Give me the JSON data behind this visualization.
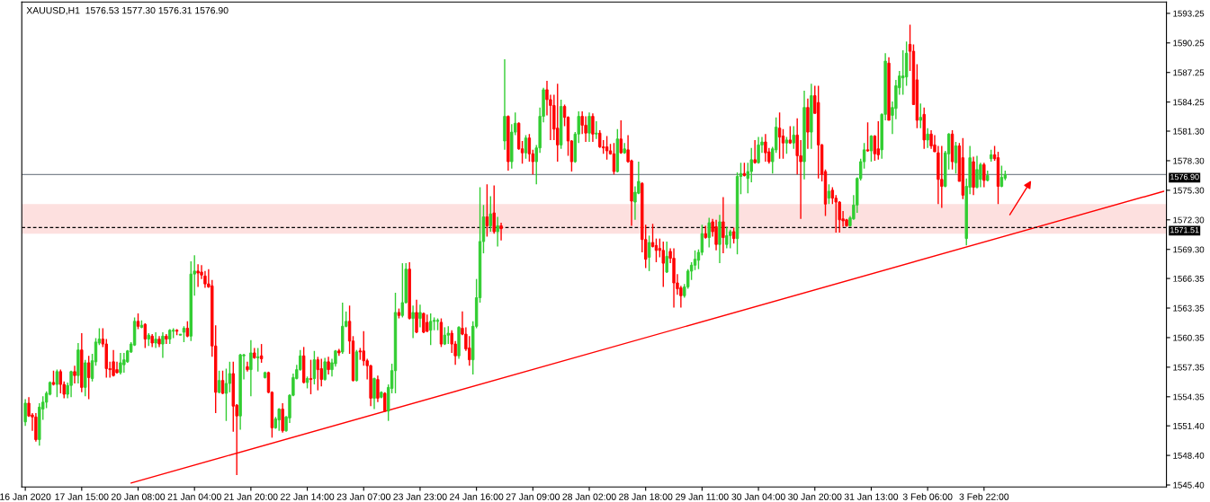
{
  "chart_data": {
    "type": "candlestick",
    "title": "XAUUSD,H1  1576.53 1577.30 1576.31 1576.90",
    "categories": [
      "16 Jan 2020",
      null,
      null,
      null,
      null,
      null,
      null,
      null,
      null,
      null,
      null,
      null,
      null,
      null,
      null,
      null,
      "17 Jan 15:00",
      null,
      null,
      null,
      null,
      null,
      null,
      null,
      null,
      null,
      null,
      null,
      null,
      null,
      null,
      null,
      "20 Jan 08:00",
      null,
      null,
      null,
      null,
      null,
      null,
      null,
      null,
      null,
      null,
      null,
      null,
      null,
      null,
      null,
      "21 Jan 04:00",
      null,
      null,
      null,
      null,
      null,
      null,
      null,
      null,
      null,
      null,
      null,
      null,
      null,
      null,
      null,
      "21 Jan 20:00",
      null,
      null,
      null,
      null,
      null,
      null,
      null,
      null,
      null,
      null,
      null,
      null,
      null,
      null,
      null,
      "22 Jan 14:00",
      null,
      null,
      null,
      null,
      null,
      null,
      null,
      null,
      null,
      null,
      null,
      null,
      null,
      null,
      null,
      "23 Jan 07:00",
      null,
      null,
      null,
      null,
      null,
      null,
      null,
      null,
      null,
      null,
      null,
      null,
      null,
      null,
      null,
      "23 Jan 23:00",
      null,
      null,
      null,
      null,
      null,
      null,
      null,
      null,
      null,
      null,
      null,
      null,
      null,
      null,
      null,
      "24 Jan 16:00",
      null,
      null,
      null,
      null,
      null,
      null,
      null,
      null,
      null,
      null,
      null,
      null,
      null,
      null,
      null,
      "27 Jan 09:00",
      null,
      null,
      null,
      null,
      null,
      null,
      null,
      null,
      null,
      null,
      null,
      null,
      null,
      null,
      null,
      "28 Jan 02:00",
      null,
      null,
      null,
      null,
      null,
      null,
      null,
      null,
      null,
      null,
      null,
      null,
      null,
      null,
      null,
      "28 Jan 18:00",
      null,
      null,
      null,
      null,
      null,
      null,
      null,
      null,
      null,
      null,
      null,
      null,
      null,
      null,
      null,
      "29 Jan 11:00",
      null,
      null,
      null,
      null,
      null,
      null,
      null,
      null,
      null,
      null,
      null,
      null,
      null,
      null,
      null,
      "30 Jan 04:00",
      null,
      null,
      null,
      null,
      null,
      null,
      null,
      null,
      null,
      null,
      null,
      null,
      null,
      null,
      null,
      "30 Jan 20:00",
      null,
      null,
      null,
      null,
      null,
      null,
      null,
      null,
      null,
      null,
      null,
      null,
      null,
      null,
      null,
      "31 Jan 13:00",
      null,
      null,
      null,
      null,
      null,
      null,
      null,
      null,
      null,
      null,
      null,
      null,
      null,
      null,
      null,
      "3 Feb 06:00",
      null,
      null,
      null,
      null,
      null,
      null,
      null,
      null,
      null,
      null,
      null,
      null,
      null,
      null,
      null,
      "3 Feb 22:00",
      null,
      null,
      null,
      null,
      null,
      null,
      null,
      null,
      null,
      null,
      null,
      null,
      null,
      null,
      null,
      null,
      null,
      null,
      null,
      null,
      null,
      null,
      null,
      null,
      null,
      null,
      null,
      null,
      null,
      null,
      null,
      null,
      null,
      null,
      null,
      null,
      null,
      null,
      null,
      null,
      null,
      null,
      null,
      null,
      null,
      null,
      null,
      null,
      null,
      null,
      null
    ],
    "ohlc": [
      [
        1551.8,
        1554.1,
        1551.4,
        1553.7
      ],
      [
        1553.7,
        1554.3,
        1552.3,
        1552.4
      ],
      [
        1552.5,
        1552.7,
        1550.9,
        1552.3
      ],
      [
        1552.3,
        1552.7,
        1549.8,
        1550.0
      ],
      [
        1550.0,
        1553.7,
        1549.4,
        1553.3
      ],
      [
        1553.1,
        1554.4,
        1552.0,
        1553.8
      ],
      [
        1553.8,
        1554.9,
        1553.2,
        1554.7
      ],
      [
        1554.6,
        1555.9,
        1554.5,
        1555.8
      ],
      [
        1555.8,
        1557.0,
        1555.5,
        1555.6
      ],
      [
        1555.6,
        1557.1,
        1554.3,
        1556.9
      ],
      [
        1556.9,
        1557.1,
        1554.7,
        1555.6
      ],
      [
        1555.6,
        1555.9,
        1554.2,
        1554.6
      ],
      [
        1554.6,
        1555.8,
        1554.2,
        1555.5
      ],
      [
        1555.5,
        1557.0,
        1554.3,
        1556.9
      ],
      [
        1556.9,
        1557.5,
        1555.7,
        1556.5
      ],
      [
        1556.5,
        1559.8,
        1555.7,
        1559.1
      ],
      [
        1559.1,
        1560.8,
        1554.8,
        1555.3
      ],
      [
        1555.3,
        1558.1,
        1554.4,
        1557.8
      ],
      [
        1557.8,
        1558.5,
        1554.1,
        1556.3
      ],
      [
        1556.2,
        1558.7,
        1555.9,
        1558.0
      ],
      [
        1557.9,
        1560.3,
        1557.5,
        1559.9
      ],
      [
        1559.8,
        1561.3,
        1559.6,
        1560.2
      ],
      [
        1560.2,
        1561.3,
        1559.4,
        1559.7
      ],
      [
        1559.7,
        1560.2,
        1556.3,
        1557.2
      ],
      [
        1557.2,
        1557.9,
        1556.3,
        1557.1
      ],
      [
        1557.9,
        1559.1,
        1556.4,
        1556.5
      ],
      [
        1557.1,
        1557.9,
        1556.7,
        1556.8
      ],
      [
        1556.8,
        1558.8,
        1556.6,
        1557.8
      ],
      [
        1557.6,
        1558.8,
        1556.8,
        1558.1
      ],
      [
        1557.9,
        1559.1,
        1557.8,
        1559.0
      ],
      [
        1558.9,
        1559.9,
        1558.8,
        1559.7
      ],
      [
        1559.6,
        1562.4,
        1559.5,
        1562.0
      ],
      [
        1562.0,
        1562.8,
        1561.2,
        1561.5
      ],
      [
        1561.4,
        1562.1,
        1561.3,
        1561.6
      ],
      [
        1561.7,
        1561.8,
        1559.3,
        1560.2
      ],
      [
        1560.2,
        1560.8,
        1559.5,
        1560.6
      ],
      [
        1560.5,
        1560.7,
        1559.4,
        1559.8
      ],
      [
        1559.8,
        1560.9,
        1559.3,
        1560.2
      ],
      [
        1560.2,
        1560.5,
        1559.4,
        1559.7
      ],
      [
        1559.7,
        1560.9,
        1558.3,
        1560.5
      ],
      [
        1560.5,
        1560.7,
        1559.7,
        1560.2
      ],
      [
        1560.2,
        1561.2,
        1559.7,
        1561.1
      ],
      [
        1561.0,
        1561.3,
        1560.3,
        1561.1
      ],
      [
        1561.1,
        1561.2,
        1560.6,
        1561.0
      ],
      [
        1560.6,
        1560.7,
        1560.6,
        1560.7
      ],
      [
        1560.9,
        1561.5,
        1559.9,
        1561.3
      ],
      [
        1561.3,
        1562.0,
        1560.4,
        1560.5
      ],
      [
        1560.5,
        1568.1,
        1560.0,
        1566.8
      ],
      [
        1566.8,
        1568.7,
        1564.6,
        1567.1
      ],
      [
        1567.1,
        1567.8,
        1565.5,
        1566.9
      ],
      [
        1567.0,
        1567.7,
        1566.3,
        1566.7
      ],
      [
        1566.6,
        1567.1,
        1565.4,
        1565.8
      ],
      [
        1565.8,
        1567.3,
        1565.4,
        1565.5
      ],
      [
        1565.6,
        1566.2,
        1558.4,
        1559.5
      ],
      [
        1559.5,
        1561.6,
        1552.7,
        1554.8
      ],
      [
        1554.8,
        1557.0,
        1554.7,
        1556.0
      ],
      [
        1556.0,
        1557.0,
        1554.6,
        1554.7
      ],
      [
        1554.7,
        1557.2,
        1551.9,
        1555.7
      ],
      [
        1555.7,
        1557.9,
        1554.8,
        1556.7
      ],
      [
        1556.7,
        1557.9,
        1550.8,
        1553.4
      ],
      [
        1553.5,
        1553.6,
        1546.4,
        1552.4
      ],
      [
        1552.4,
        1558.7,
        1551.0,
        1558.6
      ],
      [
        1558.5,
        1558.7,
        1556.1,
        1558.6
      ],
      [
        1557.4,
        1557.9,
        1556.9,
        1557.1
      ],
      [
        1557.1,
        1560.1,
        1554.4,
        1558.8
      ],
      [
        1558.8,
        1559.3,
        1558.2,
        1558.3
      ],
      [
        1558.3,
        1559.3,
        1556.9,
        1558.4
      ],
      [
        1558.5,
        1559.7,
        1557.8,
        1558.2
      ],
      [
        1556.3,
        1556.9,
        1556.2,
        1556.8
      ],
      [
        1556.8,
        1556.9,
        1554.7,
        1554.8
      ],
      [
        1554.8,
        1554.9,
        1550.2,
        1551.2
      ],
      [
        1551.2,
        1552.3,
        1551.1,
        1552.1
      ],
      [
        1552.0,
        1553.2,
        1550.9,
        1553.1
      ],
      [
        1553.1,
        1553.7,
        1550.7,
        1550.9
      ],
      [
        1550.9,
        1552.4,
        1550.8,
        1552.3
      ],
      [
        1552.2,
        1554.6,
        1551.7,
        1554.5
      ],
      [
        1554.5,
        1556.7,
        1554.4,
        1556.3
      ],
      [
        1556.2,
        1557.6,
        1556.1,
        1557.1
      ],
      [
        1557.1,
        1559.1,
        1557.0,
        1558.5
      ],
      [
        1558.5,
        1559.4,
        1555.7,
        1555.8
      ],
      [
        1555.8,
        1556.4,
        1555.2,
        1556.2
      ],
      [
        1556.2,
        1558.1,
        1554.6,
        1556.1
      ],
      [
        1556.2,
        1559.0,
        1555.6,
        1558.1
      ],
      [
        1558.1,
        1558.4,
        1555.0,
        1557.1
      ],
      [
        1557.2,
        1558.2,
        1555.4,
        1556.1
      ],
      [
        1556.1,
        1558.3,
        1556.0,
        1557.9
      ],
      [
        1557.9,
        1558.4,
        1556.6,
        1557.1
      ],
      [
        1557.1,
        1558.2,
        1556.4,
        1557.8
      ],
      [
        1557.7,
        1559.1,
        1557.4,
        1559.0
      ],
      [
        1559.0,
        1559.2,
        1558.5,
        1558.8
      ],
      [
        1558.9,
        1563.9,
        1558.7,
        1561.5
      ],
      [
        1561.5,
        1563.0,
        1561.4,
        1562.0
      ],
      [
        1562.0,
        1563.6,
        1558.7,
        1560.0
      ],
      [
        1560.0,
        1560.5,
        1555.9,
        1556.0
      ],
      [
        1556.0,
        1559.1,
        1555.9,
        1558.9
      ],
      [
        1559.0,
        1559.3,
        1558.1,
        1558.9
      ],
      [
        1559.0,
        1561.0,
        1557.5,
        1558.0
      ],
      [
        1558.0,
        1558.2,
        1556.1,
        1557.5
      ],
      [
        1557.5,
        1557.6,
        1553.4,
        1554.2
      ],
      [
        1554.2,
        1556.3,
        1553.1,
        1556.2
      ],
      [
        1556.1,
        1556.5,
        1553.8,
        1554.2
      ],
      [
        1554.3,
        1554.9,
        1554.2,
        1554.8
      ],
      [
        1554.7,
        1554.8,
        1552.8,
        1552.9
      ],
      [
        1552.9,
        1555.6,
        1551.9,
        1555.3
      ],
      [
        1555.2,
        1557.7,
        1554.7,
        1557.0
      ],
      [
        1557.0,
        1564.9,
        1554.7,
        1562.9
      ],
      [
        1562.9,
        1563.3,
        1562.3,
        1562.6
      ],
      [
        1562.6,
        1567.9,
        1562.4,
        1563.9
      ],
      [
        1563.9,
        1567.9,
        1563.8,
        1567.3
      ],
      [
        1567.3,
        1568.0,
        1562.2,
        1562.3
      ],
      [
        1562.3,
        1563.6,
        1560.3,
        1562.9
      ],
      [
        1562.9,
        1564.2,
        1560.8,
        1560.9
      ],
      [
        1562.3,
        1563.7,
        1561.4,
        1562.9
      ],
      [
        1562.8,
        1562.9,
        1560.8,
        1560.9
      ],
      [
        1561.9,
        1562.7,
        1560.9,
        1561.0
      ],
      [
        1561.1,
        1562.8,
        1559.6,
        1562.0
      ],
      [
        1562.0,
        1562.4,
        1561.1,
        1562.1
      ],
      [
        1562.0,
        1562.3,
        1561.1,
        1562.1
      ],
      [
        1561.9,
        1562.3,
        1559.4,
        1559.7
      ],
      [
        1559.7,
        1561.4,
        1559.6,
        1560.6
      ],
      [
        1560.6,
        1561.5,
        1559.7,
        1560.8
      ],
      [
        1560.8,
        1561.1,
        1558.8,
        1559.7
      ],
      [
        1559.7,
        1560.0,
        1557.6,
        1558.5
      ],
      [
        1558.5,
        1561.5,
        1558.2,
        1561.4
      ],
      [
        1561.3,
        1563.0,
        1560.6,
        1560.7
      ],
      [
        1560.7,
        1561.4,
        1559.0,
        1559.2
      ],
      [
        1559.3,
        1560.5,
        1557.5,
        1558.1
      ],
      [
        1558.1,
        1562.0,
        1556.6,
        1561.5
      ],
      [
        1561.5,
        1566.3,
        1561.3,
        1564.4
      ],
      [
        1564.4,
        1575.6,
        1563.9,
        1570.1
      ],
      [
        1570.1,
        1573.8,
        1568.9,
        1572.6
      ],
      [
        1572.6,
        1575.9,
        1570.6,
        1571.7
      ],
      [
        1571.7,
        1574.7,
        1571.1,
        1572.9
      ],
      [
        1573.0,
        1575.8,
        1570.9,
        1571.1
      ],
      [
        1571.1,
        1572.6,
        1569.6,
        1571.7
      ],
      [
        1571.7,
        1572.0,
        1570.2,
        1571.4
      ],
      [
        1580.3,
        1588.6,
        1579.4,
        1582.8
      ],
      [
        1582.8,
        1582.9,
        1577.3,
        1578.2
      ],
      [
        1578.2,
        1582.0,
        1577.5,
        1581.2
      ],
      [
        1581.2,
        1583.2,
        1580.9,
        1582.1
      ],
      [
        1582.1,
        1582.2,
        1579.4,
        1579.5
      ],
      [
        1579.5,
        1580.3,
        1578.0,
        1579.1
      ],
      [
        1579.1,
        1580.9,
        1578.5,
        1580.6
      ],
      [
        1580.6,
        1581.0,
        1578.2,
        1579.0
      ],
      [
        1579.0,
        1579.4,
        1576.9,
        1578.2
      ],
      [
        1578.2,
        1579.9,
        1575.9,
        1579.6
      ],
      [
        1579.6,
        1583.7,
        1579.1,
        1582.8
      ],
      [
        1582.8,
        1585.7,
        1582.2,
        1585.5
      ],
      [
        1585.5,
        1586.4,
        1582.9,
        1584.5
      ],
      [
        1584.5,
        1585.0,
        1580.4,
        1583.9
      ],
      [
        1583.9,
        1585.0,
        1580.4,
        1581.5
      ],
      [
        1581.6,
        1586.1,
        1578.2,
        1579.9
      ],
      [
        1579.9,
        1584.5,
        1579.5,
        1583.8
      ],
      [
        1583.8,
        1584.0,
        1581.8,
        1582.7
      ],
      [
        1582.7,
        1582.8,
        1578.8,
        1580.3
      ],
      [
        1580.3,
        1580.4,
        1577.2,
        1578.2
      ],
      [
        1578.2,
        1581.2,
        1578.1,
        1581.0
      ],
      [
        1581.0,
        1583.3,
        1580.1,
        1582.8
      ],
      [
        1582.8,
        1583.3,
        1581.0,
        1581.9
      ],
      [
        1581.9,
        1582.8,
        1580.2,
        1581.1
      ],
      [
        1581.1,
        1583.2,
        1580.2,
        1582.8
      ],
      [
        1582.8,
        1583.1,
        1580.2,
        1581.0
      ],
      [
        1581.0,
        1582.3,
        1580.5,
        1581.1
      ],
      [
        1581.1,
        1581.4,
        1579.6,
        1579.7
      ],
      [
        1579.7,
        1580.4,
        1579.0,
        1579.6
      ],
      [
        1579.7,
        1580.8,
        1578.4,
        1579.3
      ],
      [
        1579.3,
        1580.0,
        1578.9,
        1579.0
      ],
      [
        1579.0,
        1580.1,
        1576.9,
        1577.2
      ],
      [
        1577.2,
        1581.5,
        1577.1,
        1580.5
      ],
      [
        1580.5,
        1582.4,
        1579.0,
        1579.1
      ],
      [
        1579.1,
        1580.1,
        1579.0,
        1579.5
      ],
      [
        1579.4,
        1580.9,
        1578.1,
        1578.2
      ],
      [
        1578.3,
        1578.4,
        1571.7,
        1574.2
      ],
      [
        1574.1,
        1575.7,
        1572.3,
        1575.1
      ],
      [
        1575.0,
        1578.2,
        1574.9,
        1576.2
      ],
      [
        1576.0,
        1576.1,
        1569.0,
        1570.3
      ],
      [
        1570.3,
        1571.8,
        1567.4,
        1568.3
      ],
      [
        1568.5,
        1570.7,
        1567.1,
        1570.0
      ],
      [
        1570.0,
        1571.9,
        1569.5,
        1569.6
      ],
      [
        1569.7,
        1570.4,
        1568.0,
        1569.2
      ],
      [
        1569.4,
        1570.4,
        1568.5,
        1569.2
      ],
      [
        1569.2,
        1570.1,
        1565.5,
        1567.9
      ],
      [
        1567.0,
        1570.1,
        1566.9,
        1568.6
      ],
      [
        1569.1,
        1569.4,
        1567.9,
        1568.4
      ],
      [
        1568.4,
        1569.4,
        1563.4,
        1565.9
      ],
      [
        1565.9,
        1566.8,
        1564.7,
        1565.3
      ],
      [
        1565.4,
        1565.6,
        1563.4,
        1564.6
      ],
      [
        1564.6,
        1565.8,
        1564.4,
        1565.5
      ],
      [
        1565.5,
        1567.3,
        1565.3,
        1567.1
      ],
      [
        1567.1,
        1568.0,
        1566.2,
        1567.7
      ],
      [
        1567.7,
        1569.2,
        1567.2,
        1568.3
      ],
      [
        1568.2,
        1569.3,
        1567.3,
        1569.0
      ],
      [
        1569.0,
        1571.8,
        1568.7,
        1570.9
      ],
      [
        1570.9,
        1571.7,
        1570.4,
        1570.5
      ],
      [
        1570.5,
        1572.5,
        1569.5,
        1572.0
      ],
      [
        1572.1,
        1572.4,
        1570.6,
        1571.1
      ],
      [
        1571.6,
        1572.3,
        1569.2,
        1569.8
      ],
      [
        1569.8,
        1572.8,
        1567.9,
        1572.1
      ],
      [
        1572.1,
        1574.6,
        1568.9,
        1570.5
      ],
      [
        1569.8,
        1571.6,
        1569.4,
        1570.7
      ],
      [
        1570.7,
        1571.3,
        1569.4,
        1571.1
      ],
      [
        1571.1,
        1571.5,
        1569.9,
        1570.4
      ],
      [
        1570.4,
        1577.1,
        1568.8,
        1576.7
      ],
      [
        1576.7,
        1578.1,
        1574.9,
        1577.0
      ],
      [
        1577.0,
        1578.1,
        1576.7,
        1576.8
      ],
      [
        1576.5,
        1578.1,
        1575.0,
        1577.2
      ],
      [
        1577.2,
        1579.6,
        1576.1,
        1578.4
      ],
      [
        1578.4,
        1580.4,
        1578.0,
        1578.1
      ],
      [
        1578.1,
        1580.7,
        1578.0,
        1579.9
      ],
      [
        1579.9,
        1580.7,
        1579.1,
        1580.2
      ],
      [
        1580.2,
        1581.0,
        1578.2,
        1579.1
      ],
      [
        1579.2,
        1579.6,
        1578.0,
        1578.2
      ],
      [
        1578.2,
        1579.7,
        1577.0,
        1579.5
      ],
      [
        1579.4,
        1582.7,
        1579.1,
        1581.7
      ],
      [
        1581.6,
        1583.2,
        1578.5,
        1580.7
      ],
      [
        1580.8,
        1581.5,
        1578.5,
        1580.1
      ],
      [
        1580.1,
        1580.7,
        1579.0,
        1580.4
      ],
      [
        1580.4,
        1581.8,
        1580.0,
        1580.1
      ],
      [
        1580.1,
        1581.8,
        1579.5,
        1580.9
      ],
      [
        1580.9,
        1582.6,
        1576.9,
        1578.8
      ],
      [
        1578.8,
        1580.4,
        1572.4,
        1578.2
      ],
      [
        1578.2,
        1585.4,
        1576.4,
        1583.7
      ],
      [
        1583.7,
        1584.6,
        1579.5,
        1581.2
      ],
      [
        1581.2,
        1586.1,
        1579.5,
        1584.9
      ],
      [
        1584.9,
        1585.9,
        1583.1,
        1583.1
      ],
      [
        1584.2,
        1585.9,
        1576.5,
        1579.9
      ],
      [
        1579.9,
        1580.0,
        1576.2,
        1576.9
      ],
      [
        1577.2,
        1577.4,
        1572.7,
        1573.9
      ],
      [
        1574.5,
        1575.9,
        1573.9,
        1575.2
      ],
      [
        1575.3,
        1575.6,
        1573.9,
        1574.5
      ],
      [
        1574.5,
        1574.8,
        1571.0,
        1574.1
      ],
      [
        1574.1,
        1574.2,
        1571.0,
        1572.3
      ],
      [
        1572.4,
        1573.2,
        1571.6,
        1572.2
      ],
      [
        1572.3,
        1572.4,
        1571.6,
        1571.7
      ],
      [
        1571.7,
        1572.7,
        1571.6,
        1572.5
      ],
      [
        1572.4,
        1574.8,
        1572.3,
        1573.8
      ],
      [
        1573.8,
        1576.6,
        1573.0,
        1576.5
      ],
      [
        1576.5,
        1578.5,
        1576.3,
        1578.2
      ],
      [
        1578.2,
        1580.1,
        1577.5,
        1579.4
      ],
      [
        1579.4,
        1582.2,
        1579.2,
        1579.3
      ],
      [
        1579.3,
        1580.9,
        1578.2,
        1580.8
      ],
      [
        1580.8,
        1580.9,
        1578.3,
        1579.0
      ],
      [
        1579.5,
        1582.3,
        1578.4,
        1578.9
      ],
      [
        1579.4,
        1583.1,
        1578.5,
        1583.0
      ],
      [
        1583.0,
        1589.2,
        1582.4,
        1588.4
      ],
      [
        1588.2,
        1588.8,
        1582.4,
        1582.4
      ],
      [
        1582.9,
        1584.3,
        1581.0,
        1583.7
      ],
      [
        1583.6,
        1586.5,
        1582.5,
        1585.9
      ],
      [
        1585.7,
        1587.4,
        1585.0,
        1586.9
      ],
      [
        1586.7,
        1589.5,
        1585.0,
        1586.9
      ],
      [
        1586.8,
        1590.4,
        1585.9,
        1589.2
      ],
      [
        1590.1,
        1592.1,
        1587.4,
        1589.4
      ],
      [
        1589.4,
        1590.1,
        1584.0,
        1584.0
      ],
      [
        1586.5,
        1588.1,
        1581.6,
        1582.4
      ],
      [
        1582.4,
        1584.1,
        1581.6,
        1582.7
      ],
      [
        1583.0,
        1583.7,
        1579.5,
        1580.4
      ],
      [
        1580.4,
        1581.6,
        1579.6,
        1581.0
      ],
      [
        1581.0,
        1581.4,
        1579.5,
        1579.8
      ],
      [
        1579.9,
        1580.9,
        1579.2,
        1579.2
      ],
      [
        1579.1,
        1579.8,
        1573.9,
        1576.4
      ],
      [
        1576.4,
        1579.8,
        1573.5,
        1575.7
      ],
      [
        1575.7,
        1579.3,
        1575.6,
        1579.1
      ],
      [
        1579.0,
        1581.1,
        1577.4,
        1581.0
      ],
      [
        1581.0,
        1581.4,
        1577.4,
        1578.2
      ],
      [
        1578.1,
        1580.2,
        1577.0,
        1579.8
      ],
      [
        1579.8,
        1580.1,
        1576.2,
        1576.2
      ],
      [
        1578.6,
        1580.6,
        1574.4,
        1574.8
      ],
      [
        1570.4,
        1576.5,
        1569.7,
        1575.7
      ],
      [
        1575.6,
        1579.8,
        1574.9,
        1578.6
      ],
      [
        1578.2,
        1578.7,
        1574.8,
        1575.6
      ],
      [
        1575.6,
        1578.8,
        1575.5,
        1577.4
      ],
      [
        1576.4,
        1578.1,
        1575.6,
        1577.9
      ],
      [
        1577.9,
        1578.1,
        1575.6,
        1576.3
      ],
      [
        1576.3,
        1577.3,
        1576.2,
        1576.8
      ],
      [
        1578.5,
        1579.4,
        1578.2,
        1578.9
      ],
      [
        1578.9,
        1579.8,
        1578.3,
        1578.5
      ],
      [
        1578.6,
        1579.2,
        1573.9,
        1575.7
      ],
      [
        1575.7,
        1577.8,
        1575.6,
        1576.6
      ],
      [
        1576.53,
        1577.3,
        1576.31,
        1576.9
      ],
      null,
      null,
      null,
      null,
      null,
      null,
      null,
      null,
      null,
      null,
      null,
      null,
      null,
      null,
      null,
      null,
      null,
      null,
      null,
      null,
      null,
      null,
      null,
      null,
      null,
      null,
      null,
      null,
      null,
      null,
      null,
      null,
      null,
      null,
      null,
      null,
      null,
      null,
      null,
      null,
      null,
      null,
      null,
      null,
      null
    ],
    "colors": [
      "#32cd32",
      "#ff0000",
      "#ff0000",
      "#ff0000",
      "#32cd32",
      "#32cd32",
      "#32cd32",
      "#32cd32",
      "#ff0000",
      "#32cd32",
      "#ff0000",
      "#ff0000",
      "#32cd32",
      "#32cd32",
      "#ff0000",
      "#32cd32",
      "#ff0000",
      "#32cd32",
      "#ff0000",
      "#32cd32",
      "#32cd32",
      "#32cd32",
      "#ff0000",
      "#ff0000",
      "#ff0000",
      "#ff0000",
      "#ff0000",
      "#32cd32",
      "#32cd32",
      "#32cd32",
      "#32cd32",
      "#32cd32",
      "#ff0000",
      "#32cd32",
      "#ff0000",
      "#32cd32",
      "#ff0000",
      "#32cd32",
      "#ff0000",
      "#32cd32",
      "#ff0000",
      "#32cd32",
      "#32cd32",
      "#ff0000",
      "#32cd32",
      "#32cd32",
      "#ff0000",
      "#32cd32",
      "#32cd32",
      "#ff0000",
      "#ff0000",
      "#ff0000",
      "#ff0000",
      "#ff0000",
      "#ff0000",
      "#32cd32",
      "#ff0000",
      "#32cd32",
      "#32cd32",
      "#ff0000",
      "#ff0000",
      "#32cd32",
      "#32cd32",
      "#ff0000",
      "#32cd32",
      "#ff0000",
      "#32cd32",
      "#ff0000",
      "#32cd32",
      "#ff0000",
      "#ff0000",
      "#32cd32",
      "#32cd32",
      "#ff0000",
      "#32cd32",
      "#32cd32",
      "#32cd32",
      "#32cd32",
      "#32cd32",
      "#ff0000",
      "#32cd32",
      "#ff0000",
      "#32cd32",
      "#ff0000",
      "#ff0000",
      "#32cd32",
      "#ff0000",
      "#32cd32",
      "#32cd32",
      "#ff0000",
      "#32cd32",
      "#32cd32",
      "#ff0000",
      "#ff0000",
      "#32cd32",
      "#ff0000",
      "#ff0000",
      "#ff0000",
      "#ff0000",
      "#32cd32",
      "#ff0000",
      "#32cd32",
      "#ff0000",
      "#32cd32",
      "#32cd32",
      "#32cd32",
      "#ff0000",
      "#32cd32",
      "#32cd32",
      "#ff0000",
      "#32cd32",
      "#ff0000",
      "#32cd32",
      "#ff0000",
      "#ff0000",
      "#32cd32",
      "#32cd32",
      "#32cd32",
      "#ff0000",
      "#32cd32",
      "#32cd32",
      "#ff0000",
      "#ff0000",
      "#32cd32",
      "#ff0000",
      "#ff0000",
      "#ff0000",
      "#32cd32",
      "#32cd32",
      "#32cd32",
      "#32cd32",
      "#ff0000",
      "#32cd32",
      "#ff0000",
      "#32cd32",
      "#ff0000",
      "#32cd32",
      "#ff0000",
      "#32cd32",
      "#32cd32",
      "#ff0000",
      "#ff0000",
      "#32cd32",
      "#ff0000",
      "#ff0000",
      "#32cd32",
      "#32cd32",
      "#32cd32",
      "#ff0000",
      "#ff0000",
      "#ff0000",
      "#ff0000",
      "#32cd32",
      "#ff0000",
      "#ff0000",
      "#ff0000",
      "#32cd32",
      "#32cd32",
      "#ff0000",
      "#ff0000",
      "#32cd32",
      "#ff0000",
      "#32cd32",
      "#ff0000",
      "#ff0000",
      "#ff0000",
      "#ff0000",
      "#ff0000",
      "#32cd32",
      "#ff0000",
      "#32cd32",
      "#ff0000",
      "#ff0000",
      "#32cd32",
      "#32cd32",
      "#ff0000",
      "#ff0000",
      "#32cd32",
      "#ff0000",
      "#ff0000",
      "#ff0000",
      "#ff0000",
      "#32cd32",
      "#ff0000",
      "#ff0000",
      "#ff0000",
      "#ff0000",
      "#32cd32",
      "#32cd32",
      "#32cd32",
      "#32cd32",
      "#32cd32",
      "#32cd32",
      "#ff0000",
      "#32cd32",
      "#ff0000",
      "#ff0000",
      "#32cd32",
      "#ff0000",
      "#32cd32",
      "#32cd32",
      "#ff0000",
      "#32cd32",
      "#32cd32",
      "#ff0000",
      "#32cd32",
      "#32cd32",
      "#ff0000",
      "#32cd32",
      "#32cd32",
      "#ff0000",
      "#ff0000",
      "#32cd32",
      "#32cd32",
      "#ff0000",
      "#ff0000",
      "#32cd32",
      "#ff0000",
      "#32cd32",
      "#ff0000",
      "#ff0000",
      "#32cd32",
      "#ff0000",
      "#32cd32",
      "#ff0000",
      "#ff0000",
      "#ff0000",
      "#ff0000",
      "#32cd32",
      "#ff0000",
      "#ff0000",
      "#ff0000",
      "#ff0000",
      "#ff0000",
      "#32cd32",
      "#32cd32",
      "#32cd32",
      "#32cd32",
      "#32cd32",
      "#ff0000",
      "#32cd32",
      "#ff0000",
      "#ff0000",
      "#32cd32",
      "#32cd32",
      "#ff0000",
      "#32cd32",
      "#32cd32",
      "#32cd32",
      "#32cd32",
      "#32cd32",
      "#ff0000",
      "#ff0000",
      "#ff0000",
      "#32cd32",
      "#ff0000",
      "#32cd32",
      "#ff0000",
      "#ff0000",
      "#ff0000",
      "#ff0000",
      "#32cd32",
      "#32cd32",
      "#ff0000",
      "#32cd32",
      "#ff0000",
      "#ff0000",
      "#32cd32",
      "#32cd32",
      "#ff0000",
      "#32cd32",
      "#32cd32",
      "#ff0000",
      "#32cd32",
      "#32cd32",
      "#ff0000",
      "#ff0000",
      "#32cd32",
      "#32cd32",
      null,
      null,
      null,
      null,
      null,
      null,
      null,
      null,
      null,
      null,
      null,
      null,
      null,
      null,
      null,
      null,
      null,
      null,
      null,
      null,
      null,
      null,
      null,
      null,
      null,
      null,
      null,
      null,
      null,
      null,
      null,
      null,
      null,
      null,
      null,
      null,
      null,
      null,
      null,
      null,
      null,
      null,
      null,
      null,
      null
    ],
    "series": [
      {
        "type": "line",
        "color": "#ff0000",
        "values": [
          null,
          null,
          null,
          null,
          null,
          null,
          null,
          null,
          null,
          null,
          null,
          null,
          null,
          null,
          null,
          null,
          null,
          null,
          null,
          null,
          null,
          null,
          null,
          null,
          null,
          null,
          null,
          null,
          null,
          null,
          1545.6,
          null,
          null,
          null,
          null,
          null,
          null,
          null,
          null,
          null,
          null,
          null,
          null,
          null,
          null,
          null,
          null,
          null,
          null,
          null,
          null,
          null,
          null,
          null,
          null,
          null,
          null,
          null,
          null,
          null,
          null,
          null,
          null,
          null,
          null,
          null,
          null,
          null,
          null,
          null,
          null,
          null,
          null,
          null,
          null,
          null,
          null,
          null,
          null,
          null,
          null,
          null,
          null,
          null,
          null,
          null,
          null,
          null,
          null,
          null,
          null,
          null,
          null,
          null,
          null,
          null,
          null,
          null,
          null,
          null,
          null,
          null,
          null,
          null,
          null,
          null,
          null,
          null,
          null,
          null,
          null,
          null,
          null,
          null,
          null,
          null,
          null,
          null,
          null,
          null,
          null,
          null,
          null,
          null,
          null,
          null,
          null,
          null,
          null,
          null,
          null,
          null,
          null,
          null,
          null,
          null,
          null,
          null,
          null,
          null,
          null,
          null,
          null,
          null,
          null,
          null,
          null,
          null,
          null,
          null,
          null,
          null,
          null,
          null,
          null,
          null,
          null,
          null,
          null,
          null,
          null,
          null,
          null,
          null,
          null,
          null,
          null,
          null,
          null,
          null,
          null,
          null,
          null,
          null,
          null,
          null,
          null,
          null,
          null,
          null,
          null,
          null,
          null,
          null,
          null,
          null,
          null,
          null,
          null,
          null,
          null,
          null,
          null,
          null,
          null,
          null,
          null,
          null,
          null,
          null,
          null,
          null,
          null,
          null,
          null,
          null,
          null,
          null,
          null,
          null,
          null,
          null,
          null,
          null,
          null,
          null,
          null,
          null,
          null,
          null,
          null,
          null,
          null,
          null,
          null,
          null,
          null,
          null,
          null,
          null,
          null,
          null,
          null,
          null,
          null,
          null,
          null,
          null,
          null,
          null,
          null,
          null,
          null,
          null,
          null,
          null,
          null,
          null,
          null,
          null,
          null,
          null,
          null,
          null,
          null,
          null,
          null,
          null,
          null,
          null,
          null,
          null,
          null,
          null,
          null,
          null,
          null,
          null,
          null,
          null,
          null,
          null,
          null,
          null,
          null,
          null,
          null,
          null,
          null,
          null,
          null,
          null,
          null,
          null,
          null,
          null,
          null,
          null,
          null,
          null,
          null,
          null,
          null,
          null,
          null,
          null,
          null,
          null,
          null,
          null,
          null,
          null,
          null,
          null,
          null,
          null,
          null,
          null,
          null,
          null,
          null,
          null,
          null,
          null,
          null,
          null,
          null,
          null,
          null,
          null,
          null,
          null,
          null,
          1575.2
        ]
      }
    ],
    "ylim": [
      1545.2,
      1594.4
    ],
    "yticks": [
      {
        "value": 1545.4,
        "label": "1545.40"
      },
      {
        "value": 1548.4,
        "label": "1548.40"
      },
      {
        "value": 1551.4,
        "label": "1551.40"
      },
      {
        "value": 1554.35,
        "label": "1554.35"
      },
      {
        "value": 1557.35,
        "label": "1557.35"
      },
      {
        "value": 1560.35,
        "label": "1560.35"
      },
      {
        "value": 1563.35,
        "label": "1563.35"
      },
      {
        "value": 1566.35,
        "label": "1566.35"
      },
      {
        "value": 1569.3,
        "label": "1569.30"
      },
      {
        "value": 1572.3,
        "label": "1572.30"
      },
      {
        "value": 1575.3,
        "label": "1575.30"
      },
      {
        "value": 1578.3,
        "label": "1578.30"
      },
      {
        "value": 1581.3,
        "label": "1581.30"
      },
      {
        "value": 1584.25,
        "label": "1584.25"
      },
      {
        "value": 1587.25,
        "label": "1587.25"
      },
      {
        "value": 1590.25,
        "label": "1590.25"
      },
      {
        "value": 1593.25,
        "label": "1593.25"
      }
    ],
    "ref_lines": [
      {
        "axis": "y",
        "value": 1576.9,
        "label": "1576.90",
        "color": "#7f8790",
        "line_style": "solid"
      },
      {
        "axis": "y",
        "value": 1571.51,
        "label": "1571.51",
        "color": "#000000",
        "line_style": "dashed"
      }
    ],
    "bands": [
      {
        "axis": "y",
        "from": 1570.9,
        "to": 1573.9,
        "color": "#fde0df"
      }
    ],
    "grid": false
  }
}
